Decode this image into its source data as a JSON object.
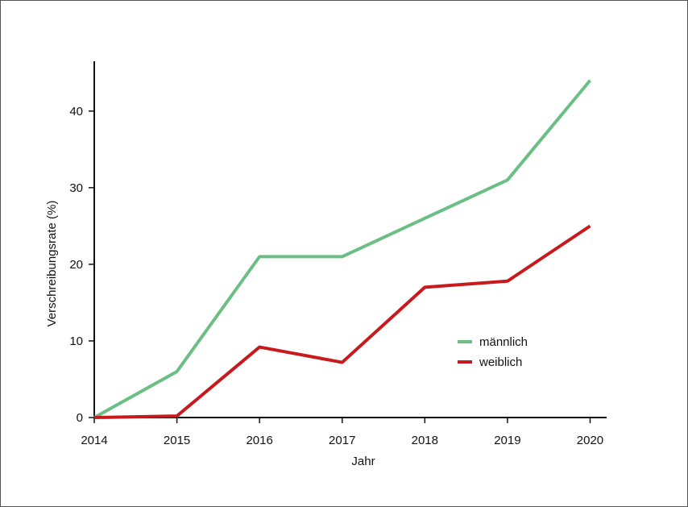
{
  "chart_data": {
    "type": "line",
    "xlabel": "Jahr",
    "ylabel": "Verschreibungsrate (%)",
    "x": [
      2014,
      2015,
      2016,
      2017,
      2018,
      2019,
      2020
    ],
    "xlim": [
      2014,
      2020.2
    ],
    "ylim": [
      0,
      46.5
    ],
    "yticks": [
      0,
      10,
      20,
      30,
      40
    ],
    "series": [
      {
        "name": "männlich",
        "color": "#6cbf84",
        "values": [
          0,
          6,
          21,
          21,
          26,
          31,
          44
        ]
      },
      {
        "name": "weiblich",
        "color": "#c8191c",
        "values": [
          0,
          0.2,
          9.2,
          7.2,
          17,
          17.8,
          25
        ]
      }
    ],
    "legend_position": "center-right",
    "grid": false
  }
}
